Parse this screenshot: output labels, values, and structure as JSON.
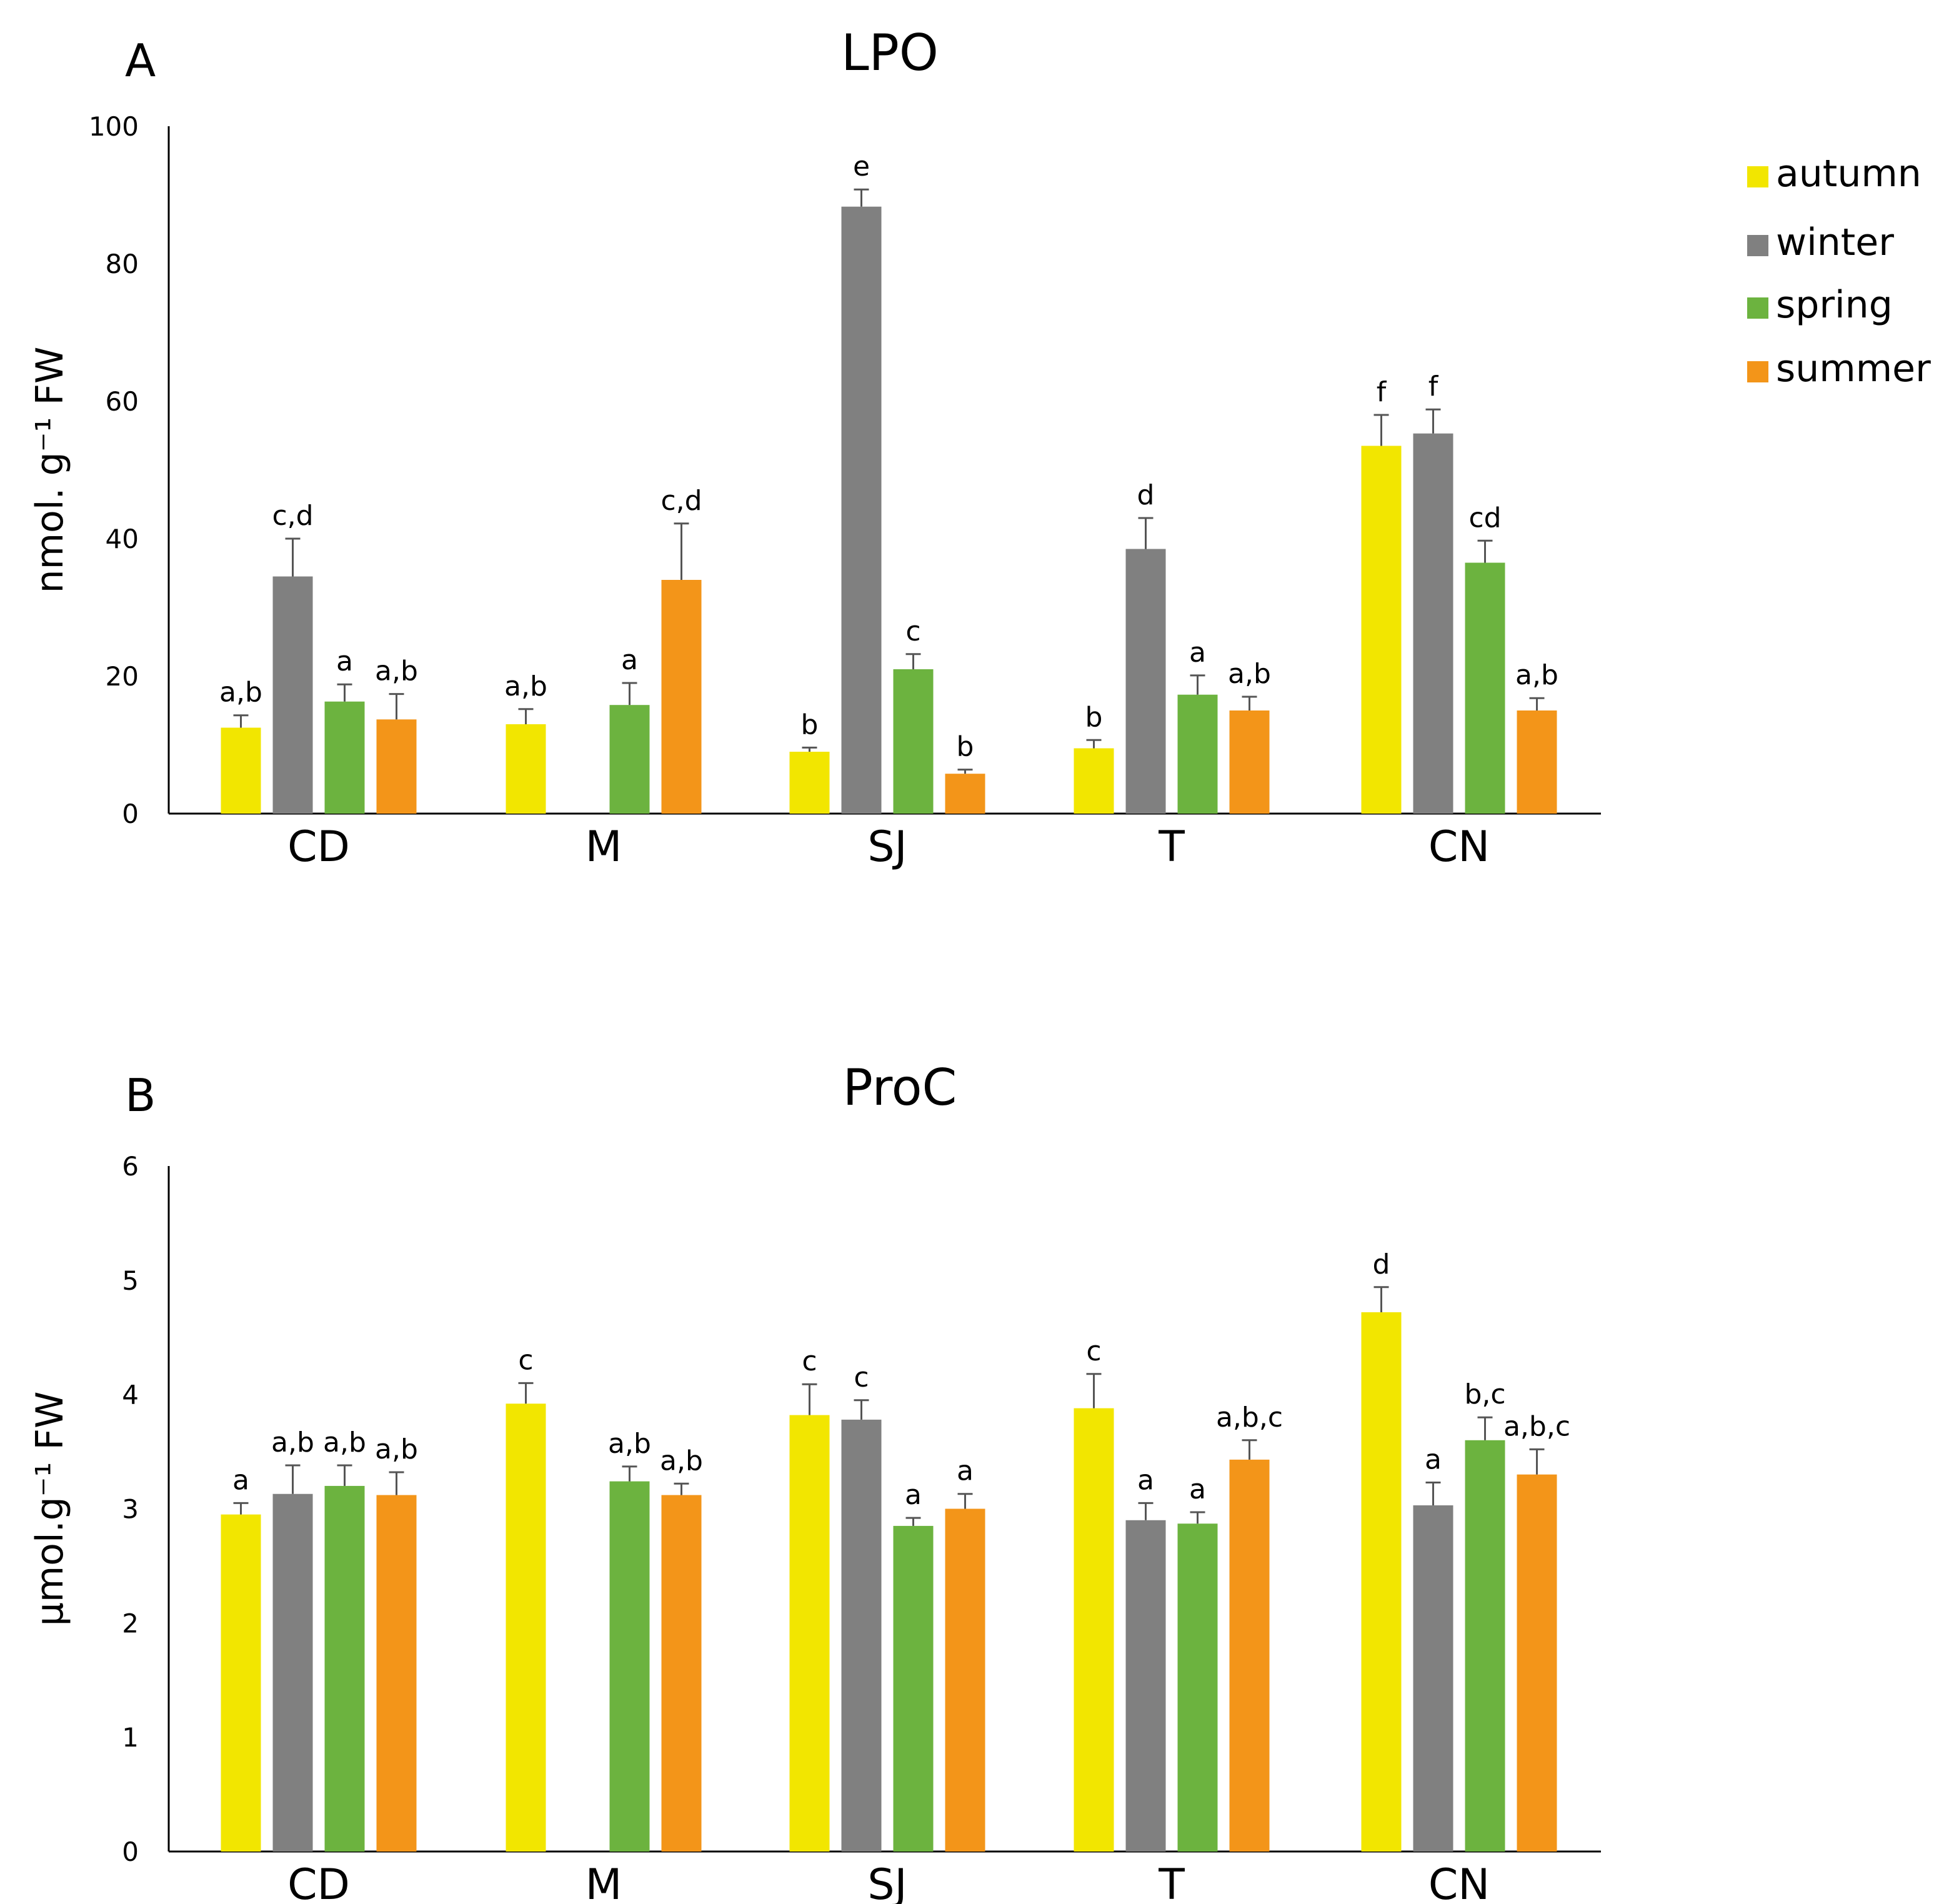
{
  "legend": [
    {
      "name": "autumn",
      "color": "#F2E600"
    },
    {
      "name": "winter",
      "color": "#808080"
    },
    {
      "name": "spring",
      "color": "#6CB33F"
    },
    {
      "name": "summer",
      "color": "#F39519"
    }
  ],
  "chart_data": [
    {
      "type": "bar",
      "panel": "A",
      "title": "LPO",
      "ylabel": "nmol. g⁻¹ FW",
      "ylim": [
        0,
        100
      ],
      "yticks": [
        "0",
        "20",
        "40",
        "60",
        "80",
        "100"
      ],
      "categories": [
        "CD",
        "M",
        "SJ",
        "T",
        "CN"
      ],
      "series": [
        {
          "name": "autumn",
          "values": [
            12.5,
            13,
            9,
            9.5,
            53.5
          ],
          "errors": [
            1.8,
            2.2,
            0.6,
            1.2,
            4.5
          ],
          "labels": [
            "a,b",
            "a,b",
            "b",
            "b",
            "f"
          ]
        },
        {
          "name": "winter",
          "values": [
            34.5,
            null,
            88.3,
            38.5,
            55.3
          ],
          "errors": [
            5.5,
            null,
            2.5,
            4.5,
            3.5
          ],
          "labels": [
            "c,d",
            "",
            "e",
            "d",
            "f"
          ]
        },
        {
          "name": "spring",
          "values": [
            16.3,
            15.8,
            21,
            17.3,
            36.5
          ],
          "errors": [
            2.5,
            3.2,
            2.2,
            2.8,
            3.2
          ],
          "labels": [
            "a",
            "a",
            "c",
            "a",
            "cd"
          ]
        },
        {
          "name": "summer",
          "values": [
            13.7,
            34,
            5.8,
            15,
            15
          ],
          "errors": [
            3.7,
            8.2,
            0.6,
            2,
            1.8
          ],
          "labels": [
            "a,b",
            "c,d",
            "b",
            "a,b",
            "a,b"
          ]
        }
      ]
    },
    {
      "type": "bar",
      "panel": "B",
      "title": "ProC",
      "ylabel": "µmol.g⁻¹ FW",
      "ylim": [
        0,
        6
      ],
      "yticks": [
        "0",
        "1",
        "2",
        "3",
        "4",
        "5",
        "6"
      ],
      "categories": [
        "CD",
        "M",
        "SJ",
        "T",
        "CN"
      ],
      "series": [
        {
          "name": "autumn",
          "values": [
            2.95,
            3.92,
            3.82,
            3.88,
            4.72
          ],
          "errors": [
            0.1,
            0.18,
            0.27,
            0.3,
            0.22
          ],
          "labels": [
            "a",
            "c",
            "c",
            "c",
            "d"
          ]
        },
        {
          "name": "winter",
          "values": [
            3.13,
            null,
            3.78,
            2.9,
            3.03
          ],
          "errors": [
            0.25,
            null,
            0.17,
            0.15,
            0.2
          ],
          "labels": [
            "a,b",
            "",
            "c",
            "a",
            "a"
          ]
        },
        {
          "name": "spring",
          "values": [
            3.2,
            3.24,
            2.85,
            2.87,
            3.6
          ],
          "errors": [
            0.18,
            0.13,
            0.07,
            0.1,
            0.2
          ],
          "labels": [
            "a,b",
            "a,b",
            "a",
            "a",
            "b,c"
          ]
        },
        {
          "name": "summer",
          "values": [
            3.12,
            3.12,
            3.0,
            3.43,
            3.3
          ],
          "errors": [
            0.2,
            0.1,
            0.13,
            0.17,
            0.22
          ],
          "labels": [
            "a,b",
            "a,b",
            "a",
            "a,b,c",
            "a,b,c"
          ]
        }
      ]
    }
  ]
}
